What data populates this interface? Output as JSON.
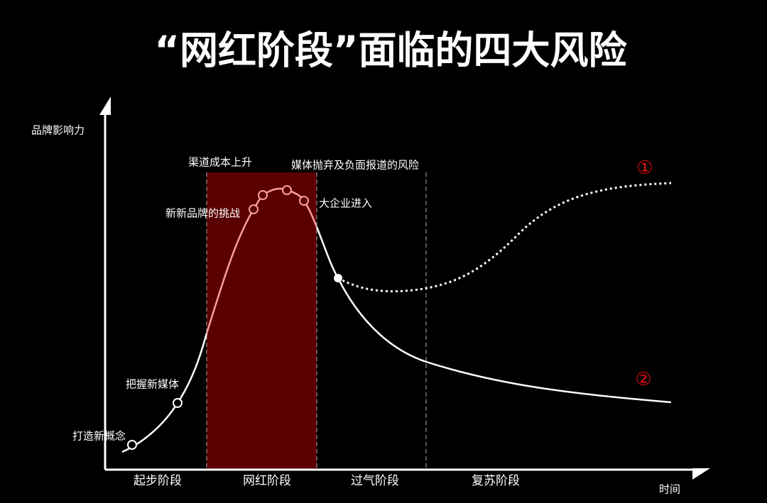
{
  "title": "“网红阶段”面临的四大风险",
  "y_axis_label": "品牌影响力",
  "x_axis_label": "时间",
  "stages": [
    "起步阶段",
    "网红阶段",
    "过气阶段",
    "复苏阶段"
  ],
  "annotations": [
    "渠道成本上升",
    "媒体抛弃及负面报道的风险",
    "新新品牌的挑战",
    "大企业进入",
    "把握新媒体",
    "打造新概念"
  ],
  "scenarios": [
    "①",
    "②"
  ]
}
